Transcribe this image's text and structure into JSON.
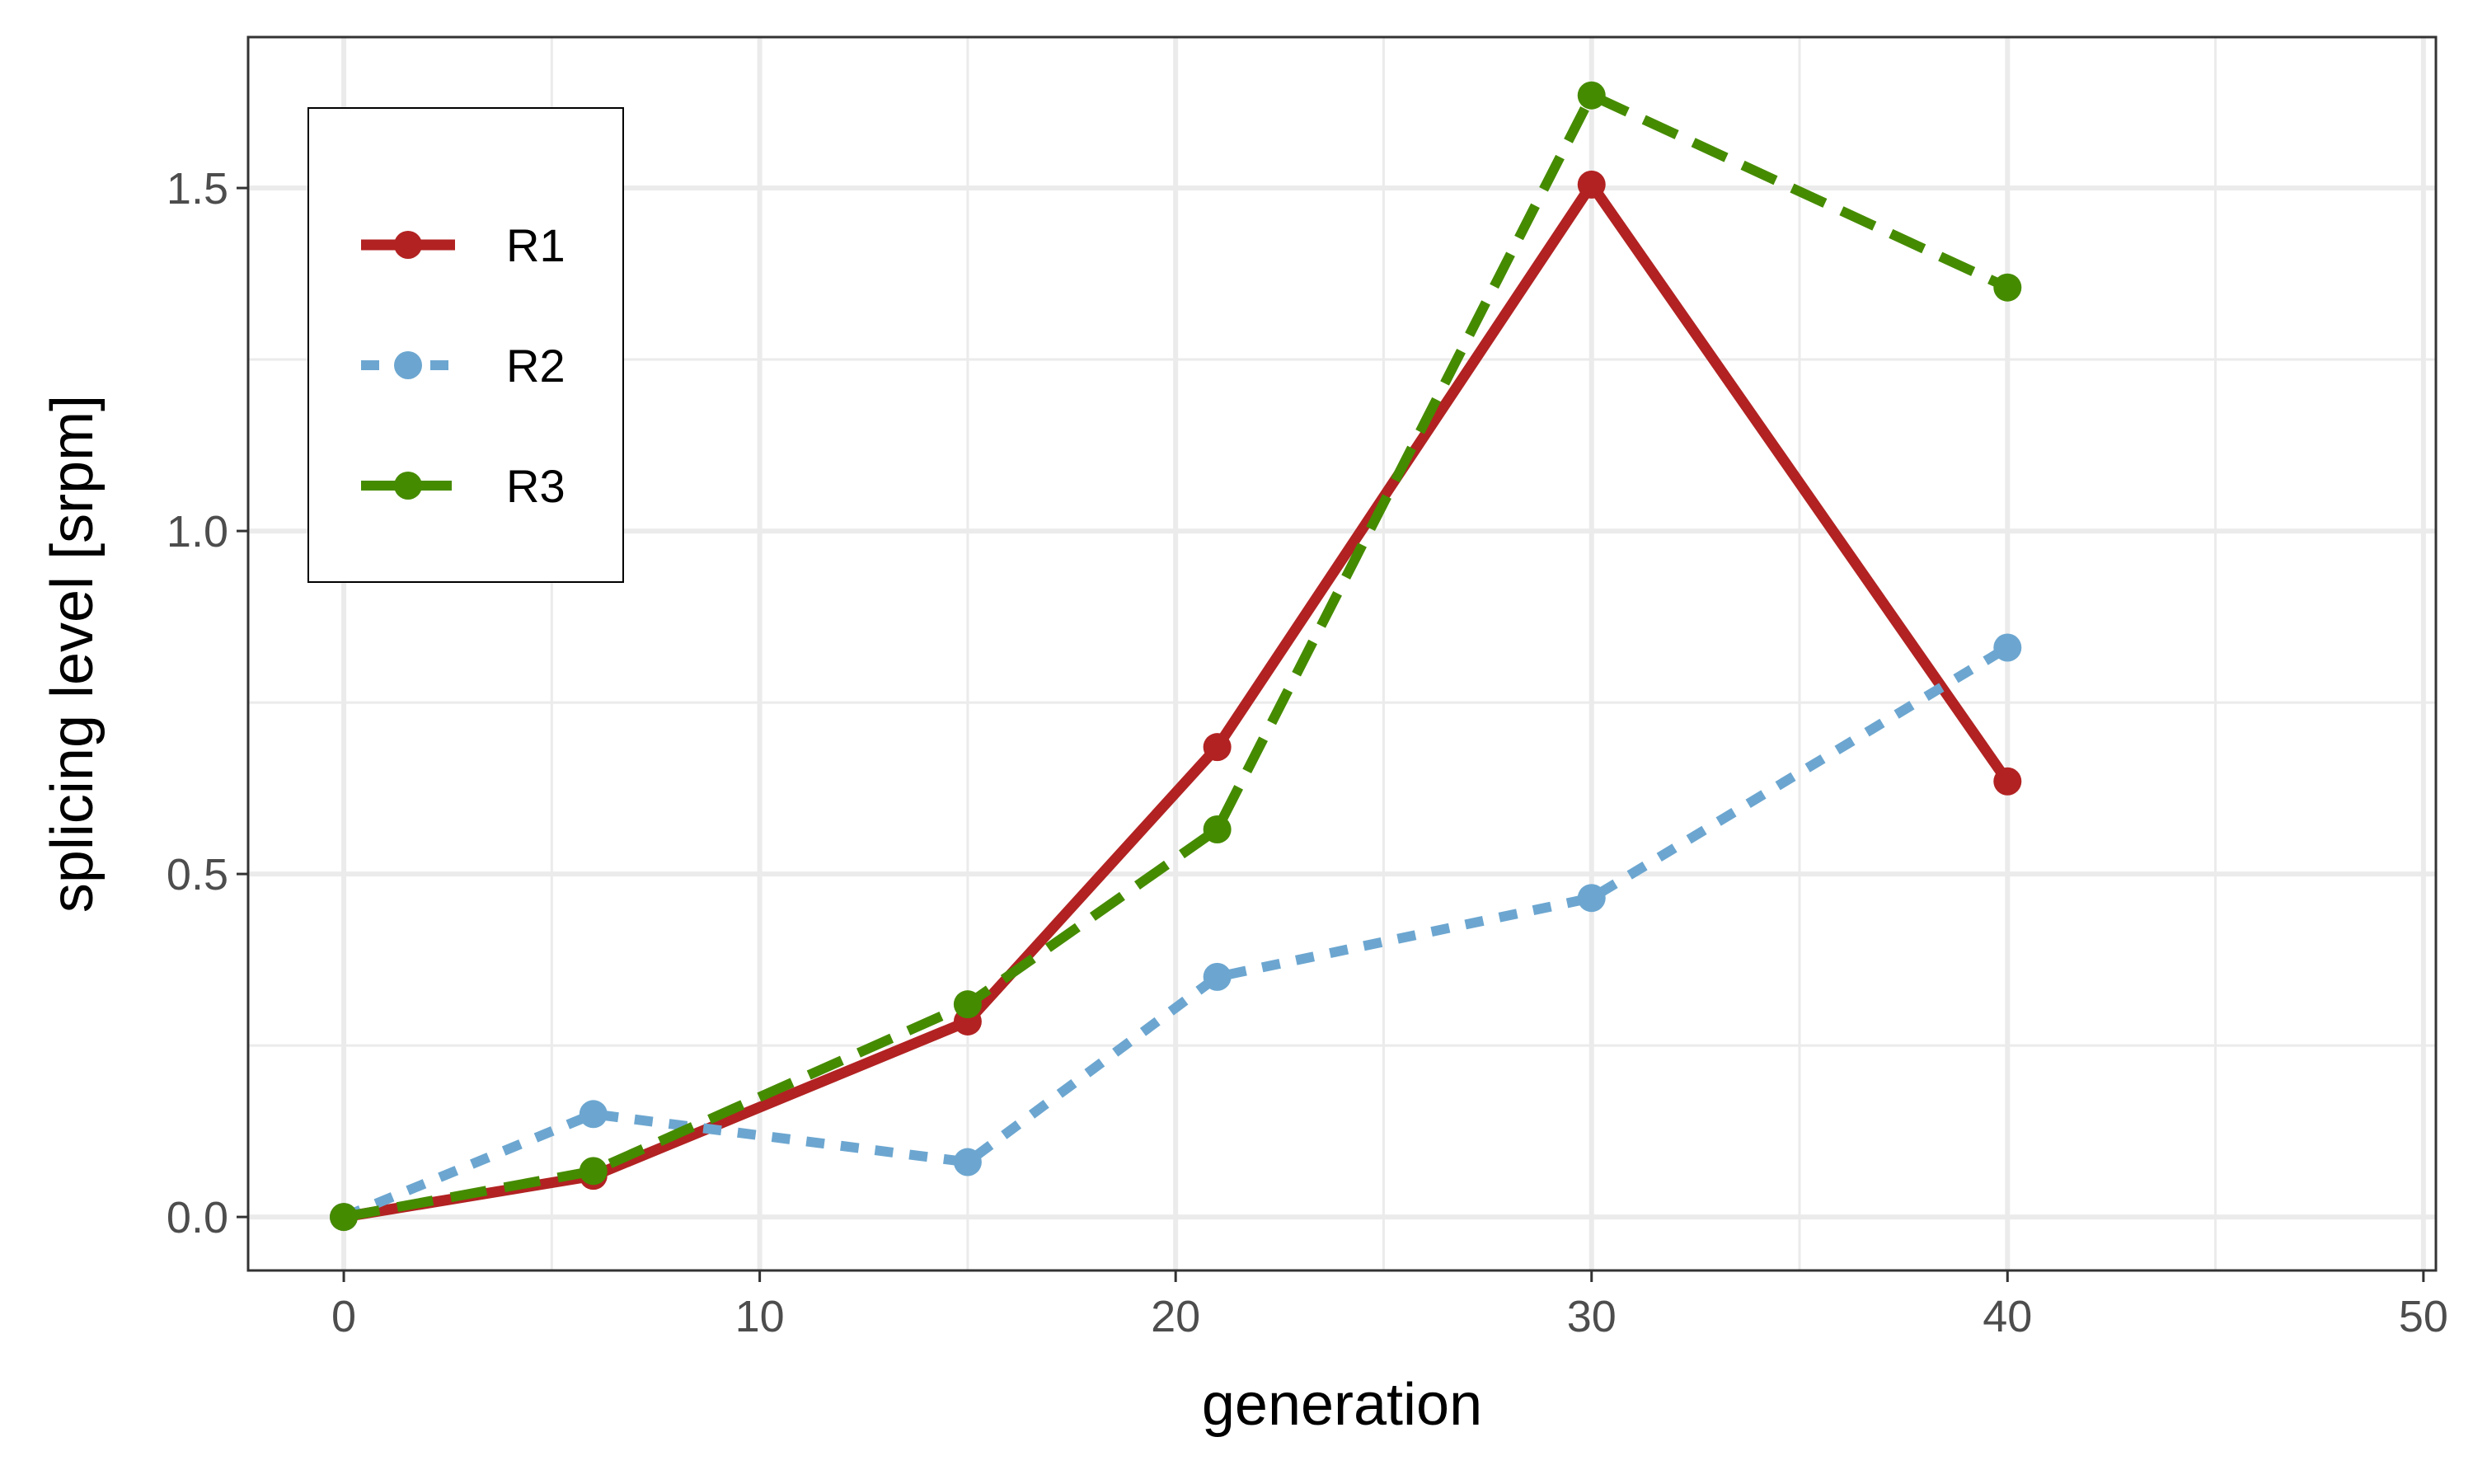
{
  "chart_data": {
    "type": "line",
    "title": "",
    "xlabel": "generation",
    "ylabel": "splicing level [srpm]",
    "xlim": [
      -2.3,
      50.3
    ],
    "ylim": [
      -0.078,
      1.72
    ],
    "x_ticks": [
      0,
      10,
      20,
      30,
      40,
      50
    ],
    "x_tick_labels": [
      "0",
      "10",
      "20",
      "30",
      "40",
      "50"
    ],
    "x_minor_ticks": [
      5,
      15,
      25,
      35,
      45
    ],
    "y_ticks": [
      0.0,
      0.5,
      1.0,
      1.5
    ],
    "y_tick_labels": [
      "0.0",
      "0.5",
      "1.0",
      "1.5"
    ],
    "y_minor_ticks": [
      0.25,
      0.75,
      1.25
    ],
    "grid": true,
    "legend_position": "top-left",
    "x": [
      0,
      6,
      15,
      21,
      30,
      40
    ],
    "series": [
      {
        "name": "R1",
        "values": [
          0.0,
          0.06,
          0.285,
          0.685,
          1.505,
          0.635
        ],
        "color": "#b22222",
        "linestyle": "solid"
      },
      {
        "name": "R2",
        "values": [
          0.0,
          0.15,
          0.08,
          0.35,
          0.465,
          0.83
        ],
        "color": "#6ca6d0",
        "linestyle": "dotted"
      },
      {
        "name": "R3",
        "values": [
          0.0,
          0.067,
          0.31,
          0.565,
          1.635,
          1.355
        ],
        "color": "#458b00",
        "linestyle": "dashed"
      }
    ]
  }
}
